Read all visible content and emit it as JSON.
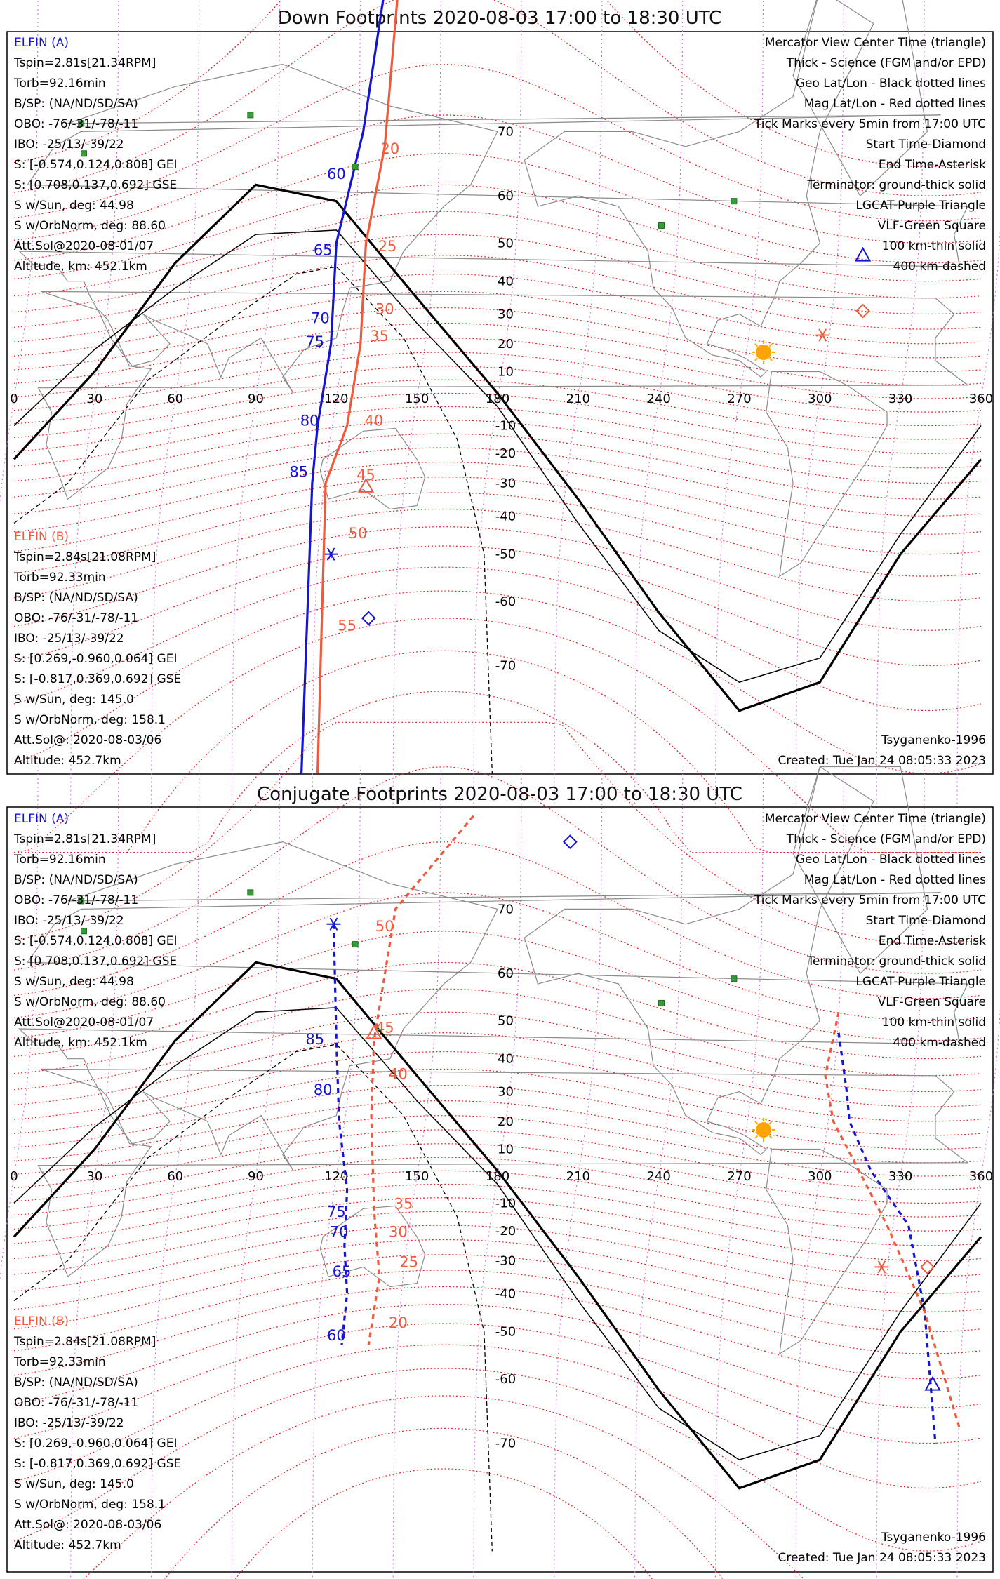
{
  "colors": {
    "elfin_a": "#1414d2",
    "elfin_b": "#f05a3c",
    "mag_grid": "#e02020",
    "geo_grid": "#d070e0",
    "vlf": "#3a9a3a",
    "sun": "#ffa400",
    "land": "#8a8a8a"
  },
  "legend_lines": [
    {
      "text": "Mercator View Center Time (triangle)",
      "color": "#000000"
    },
    {
      "text": "Thick - Science (FGM and/or EPD)",
      "color": "#000000"
    },
    {
      "text": "Geo Lat/Lon - Black dotted lines",
      "color": "#000000"
    },
    {
      "text": "Mag Lat/Lon - Red dotted lines",
      "color": "#e02020"
    },
    {
      "text": "Tick Marks every 5min from 17:00 UTC",
      "color": "#000000"
    },
    {
      "text": "Start Time-Diamond",
      "color": "#000000"
    },
    {
      "text": "End Time-Asterisk",
      "color": "#000000"
    },
    {
      "text": "Terminator: ground-thick solid",
      "color": "#000000"
    },
    {
      "text": "LGCAT-Purple Triangle",
      "color": "#d070e0"
    },
    {
      "text": "VLF-Green Square",
      "color": "#3a9a3a"
    },
    {
      "text": "100 km-thin solid",
      "color": "#000000"
    },
    {
      "text": "400 km-dashed",
      "color": "#000000"
    }
  ],
  "elfin_a_info": {
    "name": "ELFIN (A)",
    "lines": [
      "Tspin=2.81s[21.34RPM]",
      "Torb=92.16min",
      "B/SP: (NA/ND/SD/SA)",
      "OBO: -76/-31/-78/-11",
      "IBO: -25/13/-39/22",
      "S: [-0.574,0.124,0.808] GEI",
      "S: [0.708,0.137,0.692] GSE",
      "S w/Sun, deg: 44.98",
      "S w/OrbNorm, deg: 88.60",
      "Att.Sol@2020-08-01/07",
      "Altitude, km: 452.1km"
    ]
  },
  "elfin_b_info": {
    "name": "ELFIN (B)",
    "lines": [
      "Tspin=2.84s[21.08RPM]",
      "Torb=92.33min",
      "B/SP: (NA/ND/SD/SA)",
      "OBO: -76/-31/-78/-11",
      "IBO: -25/13/-39/22",
      "S: [0.269,-0.960,0.064] GEI",
      "S: [-0.817,0.369,0.692] GSE",
      "S w/Sun, deg: 145.0",
      "S w/OrbNorm, deg: 158.1",
      "Att.Sol@: 2020-08-03/06",
      "Altitude: 452.7km"
    ]
  },
  "footer": {
    "model": "Tsyganenko-1996",
    "created": "Created: Tue Jan 24 08:05:33 2023"
  },
  "chart_data": [
    {
      "type": "scatter",
      "title": "Down Footprints 2020-08-03 17:00 to 18:30 UTC",
      "xlabel": "",
      "ylabel": "",
      "xlim": [
        0,
        360
      ],
      "ylim": [
        -80,
        80
      ],
      "x_ticks": [
        0,
        30,
        60,
        90,
        120,
        150,
        180,
        210,
        240,
        270,
        300,
        330,
        360
      ],
      "y_ticks": [
        70,
        60,
        50,
        40,
        30,
        20,
        10,
        -10,
        -20,
        -30,
        -40,
        -50,
        -60,
        -70
      ],
      "grid": true,
      "sun": [
        279,
        17
      ],
      "vlf_sites": [
        [
          88,
          72
        ],
        [
          127,
          65
        ],
        [
          25,
          71
        ],
        [
          26,
          67
        ],
        [
          241,
          54
        ],
        [
          268,
          59
        ]
      ],
      "terminator_ground": [
        [
          0,
          -22
        ],
        [
          30,
          10
        ],
        [
          60,
          45
        ],
        [
          90,
          62
        ],
        [
          120,
          59
        ],
        [
          150,
          35
        ],
        [
          180,
          2
        ],
        [
          210,
          -35
        ],
        [
          240,
          -62
        ],
        [
          270,
          -75
        ],
        [
          300,
          -72
        ],
        [
          330,
          -50
        ],
        [
          360,
          -22
        ]
      ],
      "terminator_100km": [
        [
          0,
          -10
        ],
        [
          30,
          18
        ],
        [
          60,
          38
        ],
        [
          90,
          52
        ],
        [
          120,
          53
        ],
        [
          150,
          27
        ],
        [
          180,
          -3
        ],
        [
          210,
          -42
        ],
        [
          240,
          -65
        ],
        [
          270,
          -72
        ],
        [
          300,
          -69
        ],
        [
          330,
          -45
        ],
        [
          360,
          -10
        ]
      ],
      "terminator_400km": [
        [
          0,
          -42
        ],
        [
          20,
          -30
        ],
        [
          50,
          7
        ],
        [
          80,
          28
        ],
        [
          105,
          42
        ],
        [
          120,
          44
        ],
        [
          145,
          22
        ],
        [
          165,
          -15
        ],
        [
          175,
          -50
        ],
        [
          178,
          -80
        ]
      ],
      "series": [
        {
          "name": "ELFIN (A)",
          "color": "#1414d2",
          "x_lon": [
            138,
            130,
            120,
            118,
            113,
            111,
            107
          ],
          "y_lat": [
            82,
            70,
            50,
            20,
            -10,
            -30,
            -80
          ],
          "tick_labels": [
            {
              "label": "60",
              "lon": 120,
              "lat": 63
            },
            {
              "label": "65",
              "lon": 115,
              "lat": 47
            },
            {
              "label": "70",
              "lon": 114,
              "lat": 27
            },
            {
              "label": "75",
              "lon": 112,
              "lat": 19
            },
            {
              "label": "80",
              "lon": 110,
              "lat": -10
            },
            {
              "label": "85",
              "lon": 106,
              "lat": -28
            }
          ],
          "start": [
            132,
            -63
          ],
          "end": [
            118,
            -50
          ],
          "center": [
            316,
            47
          ]
        },
        {
          "name": "ELFIN (B)",
          "color": "#f05a3c",
          "x_lon": [
            143,
            138,
            131,
            129,
            124,
            116,
            113
          ],
          "y_lat": [
            82,
            68,
            50,
            20,
            -10,
            -30,
            -80
          ],
          "tick_labels": [
            {
              "label": "20",
              "lon": 140,
              "lat": 67
            },
            {
              "label": "25",
              "lon": 139,
              "lat": 48
            },
            {
              "label": "30",
              "lon": 138,
              "lat": 30
            },
            {
              "label": "35",
              "lon": 136,
              "lat": 21
            },
            {
              "label": "40",
              "lon": 134,
              "lat": -10
            },
            {
              "label": "45",
              "lon": 131,
              "lat": -29
            },
            {
              "label": "50",
              "lon": 128,
              "lat": -46
            },
            {
              "label": "55",
              "lon": 124,
              "lat": -65
            }
          ],
          "start": [
            316,
            31
          ],
          "end": [
            301,
            23
          ],
          "center": [
            131,
            -31
          ]
        }
      ]
    },
    {
      "type": "scatter",
      "title": "Conjugate Footprints 2020-08-03 17:00 to 18:30 UTC",
      "xlabel": "",
      "ylabel": "",
      "xlim": [
        0,
        360
      ],
      "ylim": [
        -80,
        80
      ],
      "x_ticks": [
        0,
        30,
        60,
        90,
        120,
        150,
        180,
        210,
        240,
        270,
        300,
        330,
        360
      ],
      "y_ticks": [
        70,
        60,
        50,
        40,
        30,
        20,
        10,
        -10,
        -20,
        -30,
        -40,
        -50,
        -60,
        -70
      ],
      "grid": true,
      "sun": [
        279,
        17
      ],
      "vlf_sites": [
        [
          88,
          72
        ],
        [
          127,
          65
        ],
        [
          25,
          71
        ],
        [
          26,
          67
        ],
        [
          241,
          54
        ],
        [
          268,
          59
        ]
      ],
      "terminator_ground": [
        [
          0,
          -22
        ],
        [
          30,
          10
        ],
        [
          60,
          45
        ],
        [
          90,
          62
        ],
        [
          120,
          59
        ],
        [
          150,
          35
        ],
        [
          180,
          2
        ],
        [
          210,
          -35
        ],
        [
          240,
          -62
        ],
        [
          270,
          -75
        ],
        [
          300,
          -72
        ],
        [
          330,
          -50
        ],
        [
          360,
          -22
        ]
      ],
      "terminator_100km": [
        [
          0,
          -10
        ],
        [
          30,
          18
        ],
        [
          60,
          38
        ],
        [
          90,
          52
        ],
        [
          120,
          53
        ],
        [
          150,
          27
        ],
        [
          180,
          -3
        ],
        [
          210,
          -42
        ],
        [
          240,
          -65
        ],
        [
          270,
          -72
        ],
        [
          300,
          -69
        ],
        [
          330,
          -45
        ],
        [
          360,
          -10
        ]
      ],
      "terminator_400km": [
        [
          0,
          -42
        ],
        [
          20,
          -30
        ],
        [
          50,
          7
        ],
        [
          80,
          28
        ],
        [
          105,
          42
        ],
        [
          120,
          44
        ],
        [
          145,
          22
        ],
        [
          165,
          -15
        ],
        [
          175,
          -50
        ],
        [
          178,
          -80
        ]
      ],
      "series": [
        {
          "name": "ELFIN (A)",
          "color": "#1414d2",
          "x_lon": [
            119,
            120,
            121,
            124,
            123,
            124,
            122
          ],
          "y_lat": [
            68,
            45,
            20,
            -5,
            -25,
            -40,
            -53
          ],
          "tick_labels": [
            {
              "label": "85",
              "lon": 112,
              "lat": 44
            },
            {
              "label": "80",
              "lon": 115,
              "lat": 29
            },
            {
              "label": "75",
              "lon": 120,
              "lat": -15
            },
            {
              "label": "70",
              "lon": 121,
              "lat": -22
            },
            {
              "label": "65",
              "lon": 122,
              "lat": -35
            },
            {
              "label": "60",
              "lon": 120,
              "lat": -52
            }
          ],
          "start": [
            207,
            77
          ],
          "end": [
            119,
            68
          ],
          "center": [
            342,
            -61
          ],
          "x_lon_2": [
            307,
            310,
            311,
            319,
            333,
            339,
            343
          ],
          "y_lat_2": [
            47,
            30,
            20,
            2,
            -18,
            -45,
            -70
          ]
        },
        {
          "name": "ELFIN (B)",
          "color": "#f05a3c",
          "x_lon": [
            171,
            142,
            134,
            133,
            134,
            136,
            132
          ],
          "y_lat": [
            79,
            70,
            45,
            22,
            -12,
            -35,
            -53
          ],
          "tick_labels": [
            {
              "label": "50",
              "lon": 138,
              "lat": 67
            },
            {
              "label": "45",
              "lon": 138,
              "lat": 47
            },
            {
              "label": "40",
              "lon": 143,
              "lat": 34
            },
            {
              "label": "35",
              "lon": 145,
              "lat": -12
            },
            {
              "label": "30",
              "lon": 143,
              "lat": -22
            },
            {
              "label": "25",
              "lon": 147,
              "lat": -32
            },
            {
              "label": "20",
              "lon": 143,
              "lat": -49
            }
          ],
          "start": [
            340,
            -32
          ],
          "end": [
            323,
            -32
          ],
          "center": [
            134,
            47
          ],
          "x_lon_2": [
            307,
            302,
            305,
            313,
            325,
            339,
            352
          ],
          "y_lat_2": [
            52,
            35,
            20,
            5,
            -18,
            -45,
            -68
          ]
        }
      ]
    }
  ]
}
